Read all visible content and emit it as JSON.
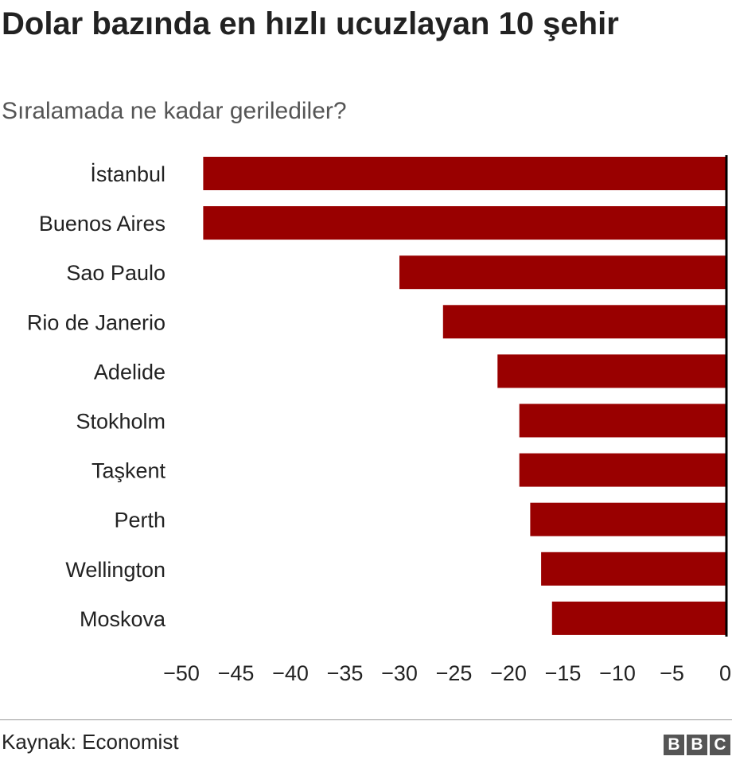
{
  "header": {
    "title": "Dolar bazında en hızlı ucuzlayan 10 şehir",
    "subtitle": "Sıralamada ne kadar gerilediler?"
  },
  "footer": {
    "source": "Kaynak: Economist",
    "logo_letters": [
      "B",
      "B",
      "C"
    ]
  },
  "colors": {
    "bar": "#990000",
    "axis": "#000000",
    "gridline": "#dddddd"
  },
  "chart_data": {
    "type": "bar",
    "orientation": "horizontal",
    "title": "Dolar bazında en hızlı ucuzlayan 10 şehir",
    "subtitle": "Sıralamada ne kadar gerilediler?",
    "categories": [
      "İstanbul",
      "Buenos Aires",
      "Sao Paulo",
      "Rio de Janerio",
      "Adelide",
      "Stokholm",
      "Taşkent",
      "Perth",
      "Wellington",
      "Moskova"
    ],
    "values": [
      -48,
      -48,
      -30,
      -26,
      -21,
      -19,
      -19,
      -18,
      -17,
      -16
    ],
    "xlabel": "",
    "ylabel": "",
    "xlim": [
      -50,
      0
    ],
    "xticks": [
      -50,
      -45,
      -40,
      -35,
      -30,
      -25,
      -20,
      -15,
      -10,
      -5,
      0
    ],
    "xtick_labels": [
      "−50",
      "−45",
      "−40",
      "−35",
      "−30",
      "−25",
      "−20",
      "−15",
      "−10",
      "−5",
      "0"
    ],
    "grid": false,
    "legend": "none"
  }
}
